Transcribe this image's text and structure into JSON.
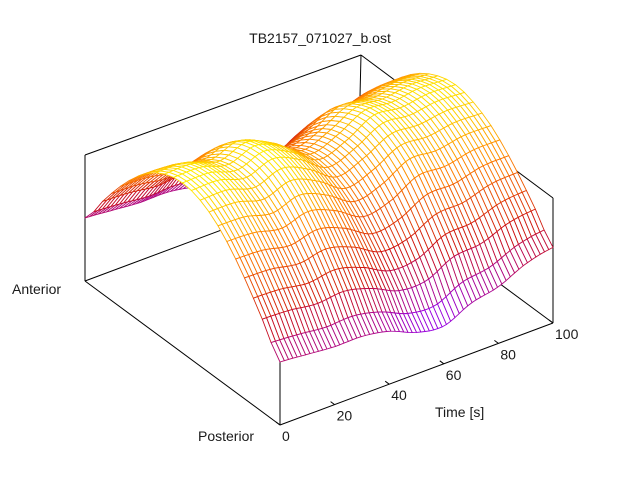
{
  "chart_data": {
    "type": "surface",
    "title": "TB2157_071027_b.ost",
    "xlabel": "Time [s]",
    "xlim": [
      0,
      100
    ],
    "x_ticks": [
      "0",
      "20",
      "40",
      "60",
      "80",
      "100"
    ],
    "x_tick_values": [
      0,
      20,
      40,
      60,
      80,
      100
    ],
    "y_labels": {
      "low": "Posterior",
      "high": "Anterior"
    },
    "time": [
      0,
      10,
      20,
      30,
      40,
      50,
      60,
      70,
      80,
      90,
      100
    ],
    "position": [
      0,
      0.1,
      0.2,
      0.3,
      0.4,
      0.5,
      0.6,
      0.7,
      0.8,
      0.9,
      1.0
    ],
    "z": [
      [
        0.5,
        0.76,
        1.0,
        1.19,
        1.31,
        1.35,
        1.31,
        1.19,
        1.0,
        0.76,
        0.5
      ],
      [
        0.48,
        0.75,
        0.99,
        1.18,
        1.31,
        1.35,
        1.31,
        1.18,
        0.99,
        0.75,
        0.48
      ],
      [
        0.46,
        0.72,
        0.95,
        1.13,
        1.25,
        1.29,
        1.25,
        1.13,
        0.95,
        0.72,
        0.46
      ],
      [
        0.46,
        0.74,
        0.99,
        1.19,
        1.32,
        1.36,
        1.32,
        1.19,
        0.99,
        0.74,
        0.46
      ],
      [
        0.42,
        0.68,
        0.92,
        1.11,
        1.23,
        1.27,
        1.23,
        1.11,
        0.92,
        0.68,
        0.42
      ],
      [
        0.33,
        0.58,
        0.8,
        0.98,
        1.09,
        1.13,
        1.09,
        0.98,
        0.8,
        0.58,
        0.33
      ],
      [
        0.3,
        0.58,
        0.83,
        1.03,
        1.16,
        1.2,
        1.16,
        1.03,
        0.83,
        0.58,
        0.3
      ],
      [
        0.4,
        0.69,
        0.94,
        1.15,
        1.27,
        1.32,
        1.27,
        1.15,
        0.94,
        0.69,
        0.4
      ],
      [
        0.45,
        0.71,
        0.95,
        1.14,
        1.26,
        1.3,
        1.26,
        1.14,
        0.95,
        0.71,
        0.45
      ],
      [
        0.55,
        0.79,
        1.01,
        1.18,
        1.29,
        1.33,
        1.29,
        1.18,
        1.01,
        0.79,
        0.55
      ],
      [
        0.6,
        0.82,
        1.02,
        1.18,
        1.28,
        1.32,
        1.28,
        1.18,
        1.02,
        0.82,
        0.6
      ]
    ],
    "palette": [
      "#9000ff",
      "#cc1010",
      "#ff8000",
      "#ffee00"
    ],
    "grid": false,
    "legend": "none"
  }
}
